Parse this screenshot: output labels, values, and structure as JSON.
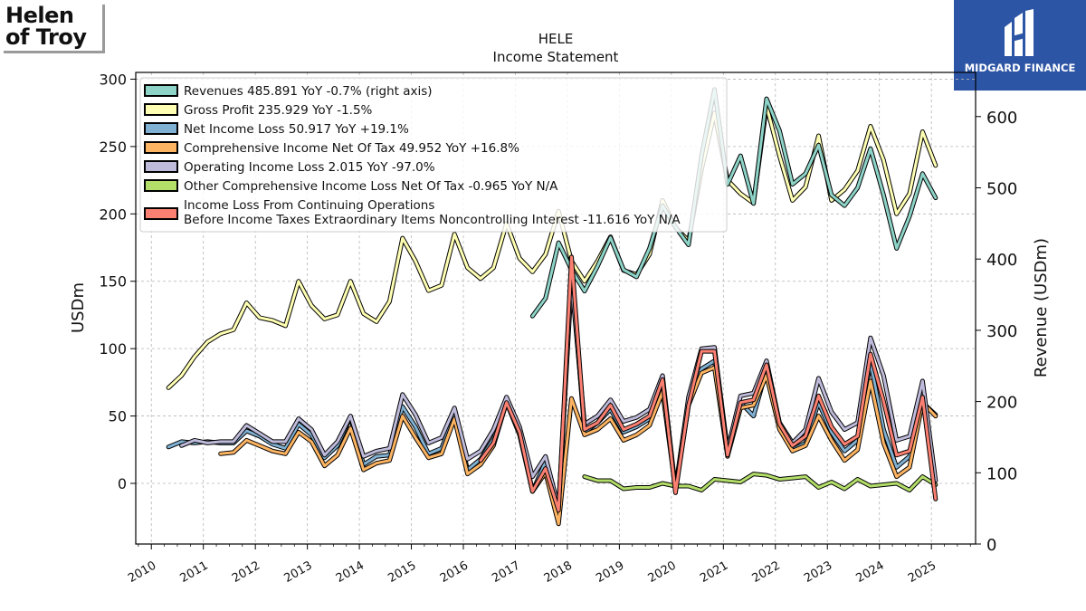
{
  "logos": {
    "left_line1": "Helen",
    "left_line2": "of Troy",
    "right_name": "MIDGARD FINANCE"
  },
  "chart_data": {
    "type": "line",
    "title": "HELE",
    "subtitle": "Income Statement",
    "ylabel": "USDm",
    "ylabel_right": "Revenue (USDm)",
    "ylim": [
      -45,
      305
    ],
    "ylim_right": [
      0,
      662
    ],
    "yticks": [
      0,
      50,
      100,
      150,
      200,
      250,
      300
    ],
    "yticks_right": [
      0,
      100,
      200,
      300,
      400,
      500,
      600
    ],
    "xlim": [
      2009.7,
      2025.85
    ],
    "xticks": [
      "2010",
      "2011",
      "2012",
      "2013",
      "2014",
      "2015",
      "2016",
      "2017",
      "2018",
      "2019",
      "2020",
      "2021",
      "2022",
      "2023",
      "2024",
      "2025"
    ],
    "grid": true,
    "legend_position": "top-left",
    "series": [
      {
        "name": "Revenues",
        "legend_label": "Revenues  485.891 YoY -0.7% (right axis)",
        "color": "#8dd3c7",
        "axis": "right",
        "x": [
          2017.33,
          2017.58,
          2017.83,
          2018.08,
          2018.33,
          2018.58,
          2018.83,
          2019.08,
          2019.33,
          2019.58,
          2019.83,
          2020.08,
          2020.33,
          2020.58,
          2020.83,
          2021.08,
          2021.33,
          2021.58,
          2021.83,
          2022.08,
          2022.33,
          2022.58,
          2022.83,
          2023.08,
          2023.33,
          2023.58,
          2023.83,
          2024.08,
          2024.33,
          2024.58,
          2024.83,
          2025.08
        ],
        "y": [
          320,
          345,
          423,
          385,
          355,
          390,
          430,
          385,
          375,
          415,
          475,
          445,
          420,
          545,
          638,
          505,
          545,
          478,
          625,
          580,
          505,
          520,
          560,
          490,
          475,
          500,
          555,
          490,
          415,
          460,
          520,
          485.891
        ]
      },
      {
        "name": "Gross Profit",
        "legend_label": "Gross Profit  235.929 YoY -1.5%",
        "color": "#ffffb3",
        "axis": "left",
        "x": [
          2010.33,
          2010.58,
          2010.83,
          2011.08,
          2011.33,
          2011.58,
          2011.83,
          2012.08,
          2012.33,
          2012.58,
          2012.83,
          2013.08,
          2013.33,
          2013.58,
          2013.83,
          2014.08,
          2014.33,
          2014.58,
          2014.83,
          2015.08,
          2015.33,
          2015.58,
          2015.83,
          2016.08,
          2016.33,
          2016.58,
          2016.83,
          2017.08,
          2017.33,
          2017.58,
          2017.83,
          2018.08,
          2018.33,
          2018.58,
          2018.83,
          2019.08,
          2019.33,
          2019.58,
          2019.83,
          2020.08,
          2020.33,
          2020.58,
          2020.83,
          2021.08,
          2021.33,
          2021.58,
          2021.83,
          2022.08,
          2022.33,
          2022.58,
          2022.83,
          2023.08,
          2023.33,
          2023.58,
          2023.83,
          2024.08,
          2024.33,
          2024.58,
          2024.83,
          2025.08
        ],
        "y": [
          71,
          80,
          94,
          105,
          111,
          114,
          134,
          123,
          121,
          117,
          150,
          132,
          122,
          125,
          150,
          126,
          120,
          135,
          182,
          165,
          143,
          147,
          185,
          160,
          152,
          160,
          193,
          167,
          157,
          170,
          202,
          165,
          150,
          165,
          183,
          158,
          155,
          170,
          210,
          190,
          180,
          233,
          275,
          225,
          215,
          208,
          280,
          243,
          210,
          220,
          258,
          210,
          218,
          232,
          265,
          240,
          200,
          215,
          261,
          235.929
        ]
      },
      {
        "name": "Net Income Loss",
        "legend_label": "Net Income Loss  50.917 YoY +19.1%",
        "color": "#80b1d3",
        "axis": "left",
        "x": [
          2010.33,
          2010.58,
          2010.83,
          2011.08,
          2011.33,
          2011.58,
          2011.83,
          2012.08,
          2012.33,
          2012.58,
          2012.83,
          2013.08,
          2013.33,
          2013.58,
          2013.83,
          2014.08,
          2014.33,
          2014.58,
          2014.83,
          2015.08,
          2015.33,
          2015.58,
          2015.83,
          2016.08,
          2016.33,
          2016.58,
          2016.83,
          2017.08,
          2017.33,
          2017.58,
          2017.83,
          2018.08,
          2018.33,
          2018.58,
          2018.83,
          2019.08,
          2019.33,
          2019.58,
          2019.83,
          2020.08,
          2020.33,
          2020.58,
          2020.83,
          2021.08,
          2021.33,
          2021.58,
          2021.83,
          2022.08,
          2022.33,
          2022.58,
          2022.83,
          2023.08,
          2023.33,
          2023.58,
          2023.83,
          2024.08,
          2024.33,
          2024.58,
          2024.83,
          2025.08
        ],
        "y": [
          27,
          31,
          30,
          31,
          30,
          30,
          39,
          35,
          29,
          26,
          44,
          36,
          19,
          28,
          49,
          14,
          20,
          21,
          57,
          42,
          22,
          26,
          51,
          10,
          18,
          33,
          61,
          40,
          -6,
          16,
          -20,
          160,
          38,
          45,
          55,
          38,
          42,
          48,
          75,
          -5,
          58,
          85,
          91,
          22,
          60,
          50,
          84,
          42,
          25,
          30,
          60,
          38,
          24,
          32,
          90,
          40,
          12,
          20,
          60,
          50.917
        ]
      },
      {
        "name": "Comprehensive Income Net Of Tax",
        "legend_label": "Comprehensive Income Net Of Tax  49.952 YoY +16.8%",
        "color": "#fdb462",
        "axis": "left",
        "x": [
          2011.33,
          2011.58,
          2011.83,
          2012.08,
          2012.33,
          2012.58,
          2012.83,
          2013.08,
          2013.33,
          2013.58,
          2013.83,
          2014.08,
          2014.33,
          2014.58,
          2014.83,
          2015.08,
          2015.33,
          2015.58,
          2015.83,
          2016.08,
          2016.33,
          2016.58,
          2016.83,
          2017.08,
          2017.33,
          2017.58,
          2017.83,
          2018.08,
          2018.33,
          2018.58,
          2018.83,
          2019.08,
          2019.33,
          2019.58,
          2019.83,
          2020.08,
          2020.33,
          2020.58,
          2020.83,
          2021.08,
          2021.33,
          2021.58,
          2021.83,
          2022.08,
          2022.33,
          2022.58,
          2022.83,
          2023.08,
          2023.33,
          2023.58,
          2023.83,
          2024.08,
          2024.33,
          2024.58,
          2024.83,
          2025.08
        ],
        "y": [
          22,
          23,
          32,
          28,
          24,
          22,
          38,
          31,
          13,
          21,
          41,
          10,
          15,
          17,
          50,
          34,
          19,
          22,
          48,
          7,
          14,
          28,
          60,
          36,
          -6,
          8,
          -30,
          63,
          36,
          40,
          48,
          32,
          36,
          43,
          68,
          -4,
          58,
          82,
          86,
          20,
          56,
          58,
          80,
          40,
          24,
          28,
          50,
          32,
          17,
          25,
          76,
          30,
          5,
          12,
          60,
          49.952
        ]
      },
      {
        "name": "Operating Income Loss",
        "legend_label": "Operating Income Loss  2.015 YoY -97.0%",
        "color": "#bebada",
        "axis": "left",
        "x": [
          2010.58,
          2010.83,
          2011.08,
          2011.33,
          2011.58,
          2011.83,
          2012.08,
          2012.33,
          2012.58,
          2012.83,
          2013.08,
          2013.33,
          2013.58,
          2013.83,
          2014.08,
          2014.33,
          2014.58,
          2014.83,
          2015.08,
          2015.33,
          2015.58,
          2015.83,
          2016.08,
          2016.33,
          2016.58,
          2016.83,
          2017.08,
          2017.33,
          2017.58,
          2017.83,
          2018.08,
          2018.33,
          2018.58,
          2018.83,
          2019.08,
          2019.33,
          2019.58,
          2019.83,
          2020.08,
          2020.33,
          2020.58,
          2020.83,
          2021.08,
          2021.33,
          2021.58,
          2021.83,
          2022.08,
          2022.33,
          2022.58,
          2022.83,
          2023.08,
          2023.33,
          2023.58,
          2023.83,
          2024.08,
          2024.33,
          2024.58,
          2024.83,
          2025.08
        ],
        "y": [
          28,
          32,
          30,
          31,
          31,
          43,
          37,
          31,
          31,
          48,
          40,
          21,
          31,
          50,
          20,
          24,
          26,
          66,
          51,
          30,
          34,
          56,
          18,
          24,
          40,
          64,
          42,
          5,
          20,
          -18,
          150,
          44,
          50,
          62,
          46,
          49,
          55,
          80,
          -4,
          64,
          100,
          101,
          25,
          65,
          67,
          91,
          45,
          30,
          40,
          78,
          53,
          40,
          45,
          108,
          80,
          32,
          35,
          76,
          2.015
        ]
      },
      {
        "name": "Other Comprehensive Income Loss Net Of Tax",
        "legend_label": "Other Comprehensive Income Loss Net Of Tax  -0.965 YoY N/A",
        "color": "#b3de69",
        "axis": "left",
        "x": [
          2018.33,
          2018.58,
          2018.83,
          2019.08,
          2019.33,
          2019.58,
          2019.83,
          2020.08,
          2020.33,
          2020.58,
          2020.83,
          2021.08,
          2021.33,
          2021.58,
          2021.83,
          2022.08,
          2022.33,
          2022.58,
          2022.83,
          2023.08,
          2023.33,
          2023.58,
          2023.83,
          2024.08,
          2024.33,
          2024.58,
          2024.83,
          2025.08
        ],
        "y": [
          5,
          2,
          2,
          -4,
          -3,
          -3,
          0,
          -2,
          -2,
          -5,
          3,
          2,
          1,
          7,
          6,
          3,
          4,
          5,
          -3,
          1,
          -4,
          3,
          -2,
          -1,
          0,
          -5,
          5,
          -0.965
        ]
      },
      {
        "name": "Income Loss From Continuing Operations Before Income Taxes Extraordinary Items Noncontrolling Interest",
        "legend_label_line1": "Income Loss From Continuing Operations",
        "legend_label_line2": "Before Income Taxes Extraordinary Items Noncontrolling Interest  -11.616 YoY N/A",
        "color": "#fb8072",
        "axis": "left",
        "x": [
          2016.33,
          2016.58,
          2016.83,
          2017.08,
          2017.33,
          2017.58,
          2017.83,
          2018.08,
          2018.33,
          2018.58,
          2018.83,
          2019.08,
          2019.33,
          2019.58,
          2019.83,
          2020.08,
          2020.33,
          2020.58,
          2020.83,
          2021.08,
          2021.33,
          2021.58,
          2021.83,
          2022.08,
          2022.33,
          2022.58,
          2022.83,
          2023.08,
          2023.33,
          2023.58,
          2023.83,
          2024.08,
          2024.33,
          2024.58,
          2024.83,
          2025.08
        ],
        "y": [
          17,
          30,
          60,
          38,
          -6,
          11,
          -20,
          168,
          40,
          45,
          58,
          40,
          44,
          50,
          77,
          -7,
          58,
          98,
          98,
          21,
          60,
          62,
          88,
          44,
          28,
          35,
          65,
          42,
          29,
          35,
          96,
          61,
          21,
          24,
          64,
          -11.616
        ]
      }
    ]
  }
}
